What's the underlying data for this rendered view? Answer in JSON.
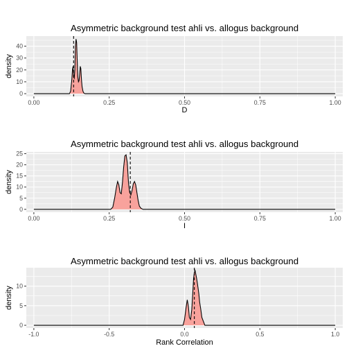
{
  "chart_data": [
    {
      "type": "area",
      "title": "Asymmetric background test ahli vs. allogus background",
      "xlabel": "D",
      "ylabel": "density",
      "xlim": [
        -0.025,
        1.025
      ],
      "ylim": [
        -2.3,
        48.5
      ],
      "x_ticks": [
        0.0,
        0.25,
        0.5,
        0.75,
        1.0
      ],
      "x_tick_labels": [
        "0.00",
        "0.25",
        "0.50",
        "0.75",
        "1.00"
      ],
      "x_minor_ticks": [
        0.125,
        0.375,
        0.625,
        0.875
      ],
      "y_ticks": [
        0,
        10,
        20,
        30,
        40
      ],
      "y_tick_labels": [
        "0",
        "10",
        "20",
        "30",
        "40"
      ],
      "y_minor_ticks": [
        5,
        15,
        25,
        35,
        45
      ],
      "grid": true,
      "reference_line_x": 0.132,
      "series": [
        {
          "x": [
            0.0,
            0.118,
            0.122,
            0.126,
            0.128,
            0.13,
            0.132,
            0.134,
            0.136,
            0.138,
            0.14,
            0.142,
            0.144,
            0.146,
            0.148,
            0.15,
            0.152,
            0.154,
            0.156,
            0.158,
            0.16,
            0.163,
            0.166,
            0.17,
            1.0
          ],
          "y": [
            0,
            0,
            2,
            12,
            20,
            23,
            14,
            13,
            20,
            40,
            46,
            43,
            27,
            14,
            10,
            11,
            16,
            23,
            21,
            12,
            6,
            2,
            0.5,
            0,
            0
          ]
        }
      ]
    },
    {
      "type": "area",
      "title": "Asymmetric background test ahli vs. allogus background",
      "xlabel": "I",
      "ylabel": "density",
      "xlim": [
        -0.025,
        1.025
      ],
      "ylim": [
        -1.3,
        25.8
      ],
      "x_ticks": [
        0.0,
        0.25,
        0.5,
        0.75,
        1.0
      ],
      "x_tick_labels": [
        "0.00",
        "0.25",
        "0.50",
        "0.75",
        "1.00"
      ],
      "x_minor_ticks": [
        0.125,
        0.375,
        0.625,
        0.875
      ],
      "y_ticks": [
        0,
        5,
        10,
        15,
        20,
        25
      ],
      "y_tick_labels": [
        "0",
        "5",
        "10",
        "15",
        "20",
        "25"
      ],
      "y_minor_ticks": [
        2.5,
        7.5,
        12.5,
        17.5,
        22.5
      ],
      "grid": true,
      "reference_line_x": 0.32,
      "series": [
        {
          "x": [
            0.0,
            0.255,
            0.262,
            0.268,
            0.274,
            0.278,
            0.282,
            0.286,
            0.29,
            0.294,
            0.298,
            0.302,
            0.306,
            0.31,
            0.314,
            0.318,
            0.322,
            0.326,
            0.33,
            0.334,
            0.338,
            0.342,
            0.346,
            0.35,
            0.355,
            0.362,
            1.0
          ],
          "y": [
            0,
            0,
            1,
            5,
            10,
            12.5,
            11,
            7.5,
            7,
            12,
            19,
            24,
            24.5,
            21,
            12,
            7.5,
            6.5,
            8.5,
            11.5,
            12.5,
            11,
            7.5,
            4,
            1.5,
            0.5,
            0,
            0
          ]
        }
      ]
    },
    {
      "type": "area",
      "title": "Asymmetric background test ahli vs. allogus background",
      "xlabel": "Rank Correlation",
      "ylabel": "density",
      "xlim": [
        -1.05,
        1.05
      ],
      "ylim": [
        -0.7,
        14.7
      ],
      "x_ticks": [
        -1.0,
        -0.5,
        0.0,
        0.5,
        1.0
      ],
      "x_tick_labels": [
        "-1.0",
        "-0.5",
        "0.0",
        "0.5",
        "1.0"
      ],
      "x_minor_ticks": [
        -0.75,
        -0.25,
        0.25,
        0.75
      ],
      "y_ticks": [
        0,
        5,
        10
      ],
      "y_tick_labels": [
        "0",
        "5",
        "10"
      ],
      "y_minor_ticks": [
        2.5,
        7.5,
        12.5
      ],
      "grid": true,
      "reference_line_x": 0.065,
      "series": [
        {
          "x": [
            -1.0,
            -0.01,
            0.0,
            0.01,
            0.018,
            0.025,
            0.032,
            0.04,
            0.048,
            0.055,
            0.06,
            0.065,
            0.07,
            0.075,
            0.08,
            0.088,
            0.095,
            0.1,
            0.108,
            0.115,
            0.125,
            0.135,
            1.0
          ],
          "y": [
            0,
            0,
            1.5,
            4.5,
            6.5,
            5,
            2,
            1.5,
            4,
            8.5,
            12,
            13.5,
            14,
            13,
            12,
            10,
            8,
            6,
            4,
            2,
            1,
            0,
            0
          ]
        }
      ]
    }
  ]
}
